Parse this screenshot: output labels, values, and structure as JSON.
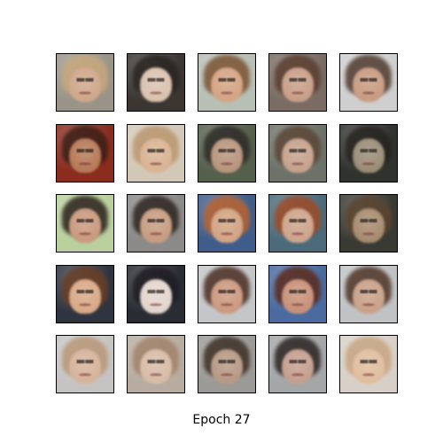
{
  "caption": "Epoch 27",
  "grid": {
    "rows": 5,
    "cols": 5,
    "tiles": [
      {
        "bg": "#9a9488",
        "hair": "#c7a77c",
        "face": "#cfa88c"
      },
      {
        "bg": "#3b3632",
        "hair": "#2a2420",
        "face": "#d9c3b0"
      },
      {
        "bg": "#b8bfb5",
        "hair": "#7a5232",
        "face": "#d4a585"
      },
      {
        "bg": "#7a6c63",
        "hair": "#5a3e30",
        "face": "#c8a08a"
      },
      {
        "bg": "#cfcfcf",
        "hair": "#4f3a2e",
        "face": "#c89c82"
      },
      {
        "bg": "#8a2c1e",
        "hair": "#3a1e16",
        "face": "#b77a58"
      },
      {
        "bg": "#d3c8b7",
        "hair": "#b9966e",
        "face": "#d9b495"
      },
      {
        "bg": "#55604c",
        "hair": "#2e2a26",
        "face": "#b8967e"
      },
      {
        "bg": "#6d7268",
        "hair": "#5a4536",
        "face": "#c6a38e"
      },
      {
        "bg": "#30332d",
        "hair": "#262320",
        "face": "#9a8e78"
      },
      {
        "bg": "#b9d09e",
        "hair": "#2b1f1a",
        "face": "#c99a7e"
      },
      {
        "bg": "#8c8a88",
        "hair": "#2c2420",
        "face": "#c79d83"
      },
      {
        "bg": "#3f5c8a",
        "hair": "#b8632f",
        "face": "#d2a585"
      },
      {
        "bg": "#4b6a7a",
        "hair": "#9c4a26",
        "face": "#cda58c"
      },
      {
        "bg": "#3a3a34",
        "hair": "#5a4530",
        "face": "#a88c70"
      },
      {
        "bg": "#2f3440",
        "hair": "#6a3e24",
        "face": "#d8aa88"
      },
      {
        "bg": "#2a2c34",
        "hair": "#1e1c22",
        "face": "#e3d6ce"
      },
      {
        "bg": "#c4c6c8",
        "hair": "#4a2c22",
        "face": "#cc9a80"
      },
      {
        "bg": "#4a6aa0",
        "hair": "#5a2a1c",
        "face": "#c8927a"
      },
      {
        "bg": "#c0c2c4",
        "hair": "#4e3426",
        "face": "#c9a28a"
      },
      {
        "bg": "#c6c4c2",
        "hair": "#b89778",
        "face": "#d6b49c"
      },
      {
        "bg": "#b8aca0",
        "hair": "#a0826a",
        "face": "#d8bca8"
      },
      {
        "bg": "#9c9a96",
        "hair": "#3c2e26",
        "face": "#b89a86"
      },
      {
        "bg": "#a4a6a8",
        "hair": "#2a2422",
        "face": "#c5a090"
      },
      {
        "bg": "#d8d0c6",
        "hair": "#c6a582",
        "face": "#e0bea0"
      }
    ]
  }
}
